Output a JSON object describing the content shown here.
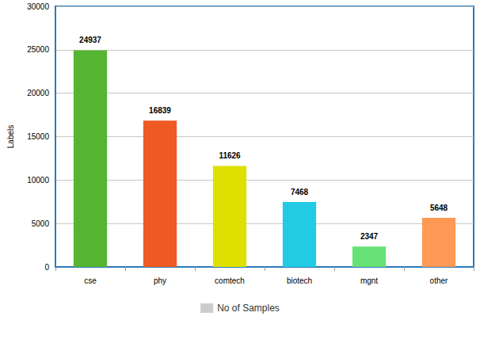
{
  "chart_data": {
    "type": "bar",
    "y_label": "Labels",
    "categories": [
      "cse",
      "phy",
      "comtech",
      "biotech",
      "mgnt",
      "other"
    ],
    "series": [
      {
        "name": "No of Samples",
        "color": "#cccccc",
        "values": [
          24937,
          16839,
          11626,
          7468,
          2347,
          5648
        ]
      }
    ],
    "colors": [
      "#55b533",
      "#ee5a22",
      "#dde000",
      "#22cbe3",
      "#66e274",
      "#ff9955"
    ],
    "ylim": [
      0,
      30000
    ],
    "yticks": [
      0,
      5000,
      10000,
      15000,
      20000,
      25000,
      30000
    ],
    "grid": true,
    "legend": "bottom",
    "data_labels": true
  }
}
